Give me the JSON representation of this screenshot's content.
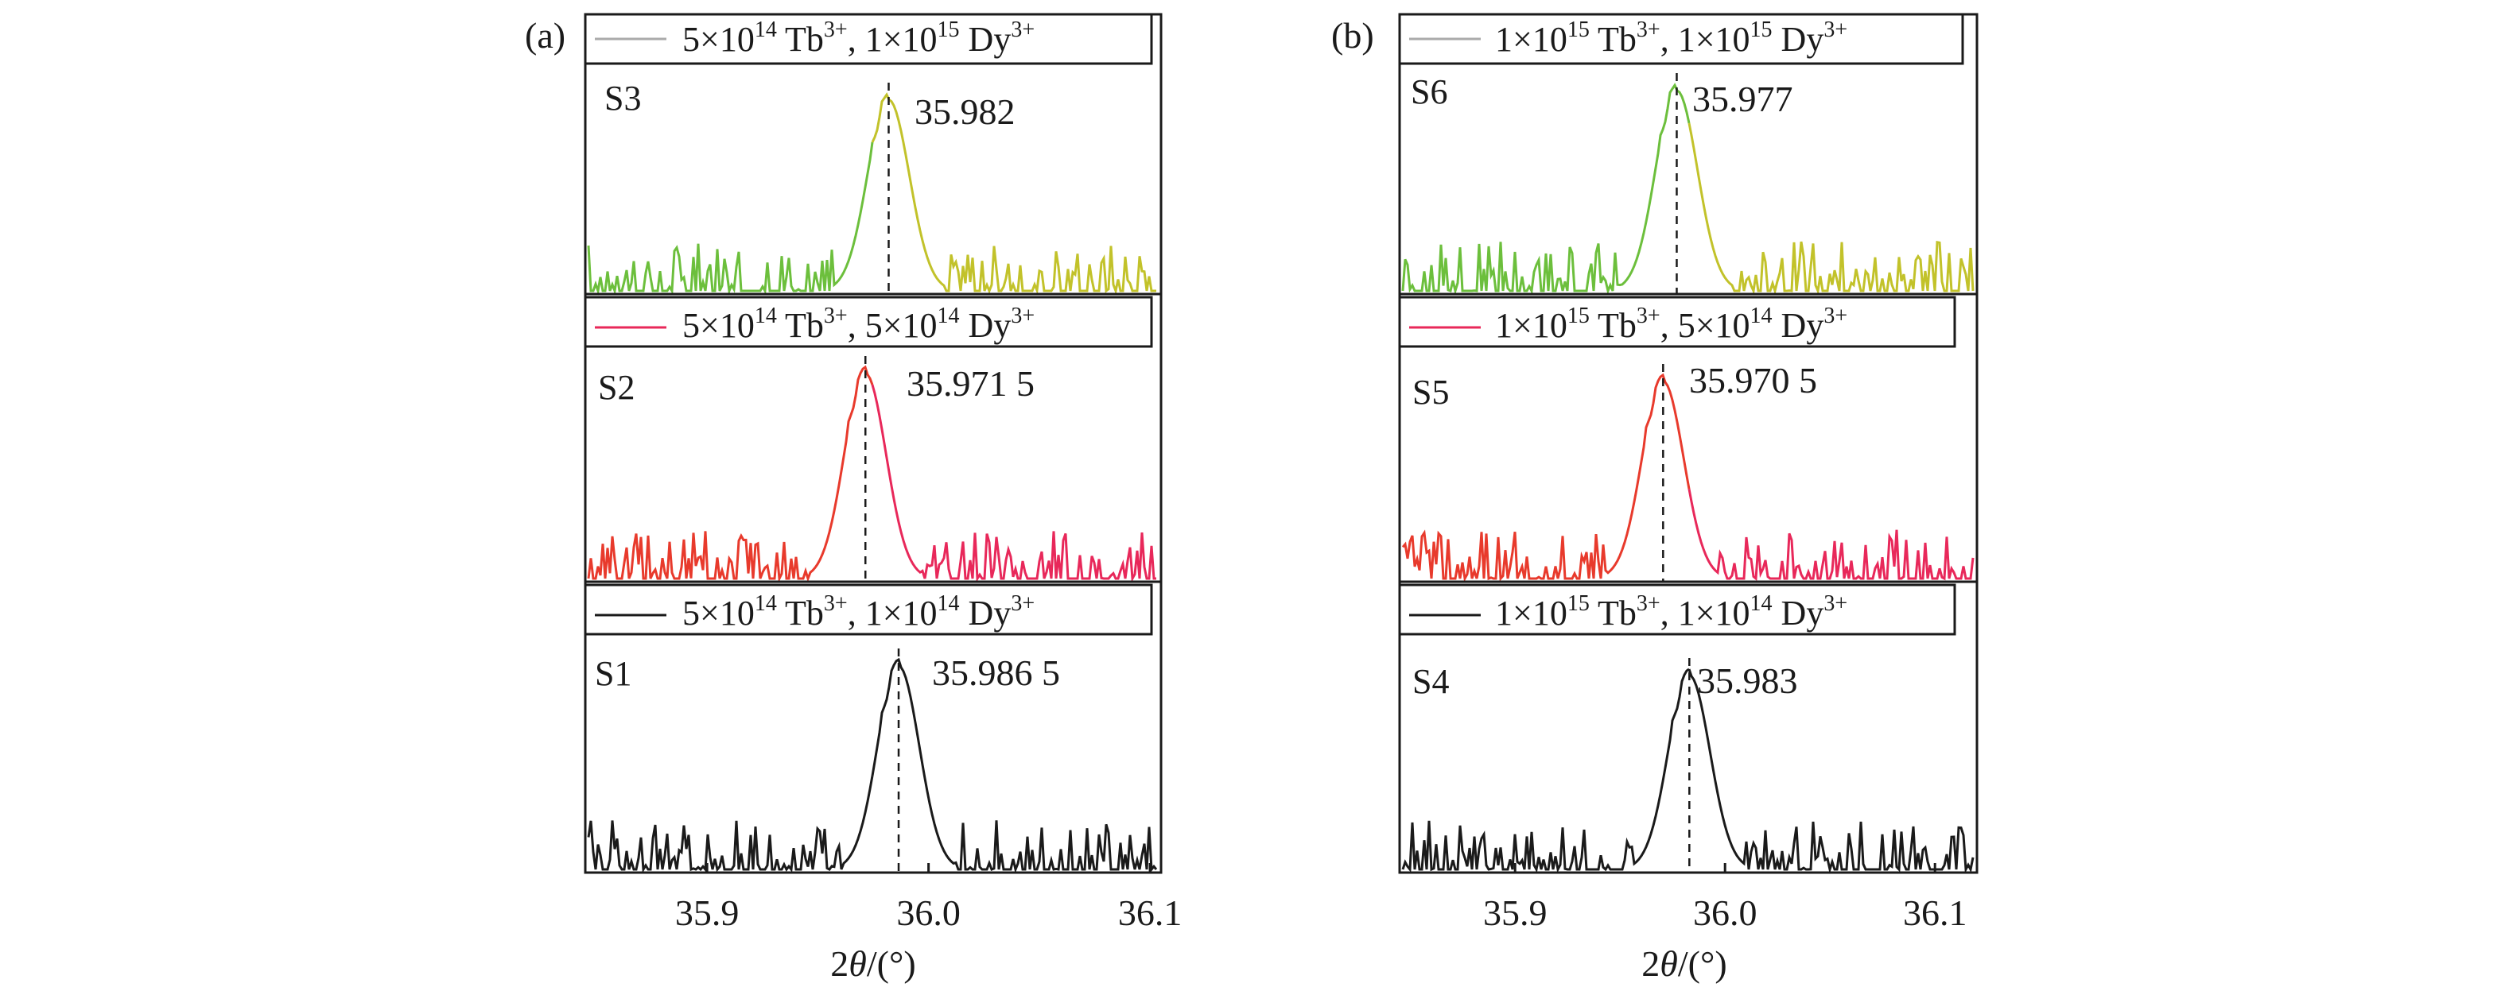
{
  "colors": {
    "black": "#1a1a1a",
    "red_series": "#e83a2c",
    "red_series_alt": "#e8285a",
    "green_series": "#6cbf3c",
    "green_series_alt": "#c2c22a"
  },
  "chart_data": [
    {
      "type": "line",
      "panel_label": "(a)",
      "xlabel_prefix": "2",
      "xlabel_theta": "θ",
      "xlabel_suffix": "/(°)",
      "xlim": [
        35.845,
        36.105
      ],
      "xticks": [
        35.9,
        36.0,
        36.1
      ],
      "xtick_labels": [
        "35.9",
        "36.0",
        "36.1"
      ],
      "subplots": [
        {
          "sample": "S3",
          "legend": {
            "c1": "5×10",
            "e1": "14",
            "t1": " Tb",
            "s1": "3+",
            "c2": ", 1×10",
            "e2": "15",
            "t2": " Dy",
            "s2": "3+"
          },
          "legend_line_color": "#aaaaaa",
          "peak_x": 35.982,
          "peak_label": "35.982",
          "series_colors": [
            "#6cbf3c",
            "#c2c22a"
          ]
        },
        {
          "sample": "S2",
          "legend": {
            "c1": "5×10",
            "e1": "14",
            "t1": " Tb",
            "s1": "3+",
            "c2": ", 5×10",
            "e2": "14",
            "t2": " Dy",
            "s2": "3+"
          },
          "legend_line_color": "#e8285a",
          "peak_x": 35.9715,
          "peak_label": "35.971 5",
          "series_colors": [
            "#e83a2c",
            "#e8285a"
          ]
        },
        {
          "sample": "S1",
          "legend": {
            "c1": "5×10",
            "e1": "14",
            "t1": " Tb",
            "s1": "3+",
            "c2": ", 1×10",
            "e2": "14",
            "t2": " Dy",
            "s2": "3+"
          },
          "legend_line_color": "#1a1a1a",
          "peak_x": 35.9865,
          "peak_label": "35.986 5",
          "series_colors": [
            "#1a1a1a",
            "#1a1a1a"
          ]
        }
      ]
    },
    {
      "type": "line",
      "panel_label": "(b)",
      "xlabel_prefix": "2",
      "xlabel_theta": "θ",
      "xlabel_suffix": "/(°)",
      "xlim": [
        35.845,
        36.12
      ],
      "xticks": [
        35.9,
        36.0,
        36.1
      ],
      "xtick_labels": [
        "35.9",
        "36.0",
        "36.1"
      ],
      "subplots": [
        {
          "sample": "S6",
          "legend": {
            "c1": "1×10",
            "e1": "15",
            "t1": " Tb",
            "s1": "3+",
            "c2": ", 1×10",
            "e2": "15",
            "t2": " Dy",
            "s2": "3+"
          },
          "legend_line_color": "#aaaaaa",
          "peak_x": 35.977,
          "peak_label": "35.977",
          "series_colors": [
            "#6cbf3c",
            "#c2c22a"
          ]
        },
        {
          "sample": "S5",
          "legend": {
            "c1": "1×10",
            "e1": "15",
            "t1": " Tb",
            "s1": "3+",
            "c2": ", 5×10",
            "e2": "14",
            "t2": " Dy",
            "s2": "3+"
          },
          "legend_line_color": "#e8285a",
          "peak_x": 35.9705,
          "peak_label": "35.970 5",
          "series_colors": [
            "#e83a2c",
            "#e8285a"
          ]
        },
        {
          "sample": "S4",
          "legend": {
            "c1": "1×10",
            "e1": "15",
            "t1": " Tb",
            "s1": "3+",
            "c2": ", 1×10",
            "e2": "14",
            "t2": " Dy",
            "s2": "3+"
          },
          "legend_line_color": "#1a1a1a",
          "peak_x": 35.983,
          "peak_label": "35.983",
          "series_colors": [
            "#1a1a1a",
            "#1a1a1a"
          ]
        }
      ]
    }
  ]
}
